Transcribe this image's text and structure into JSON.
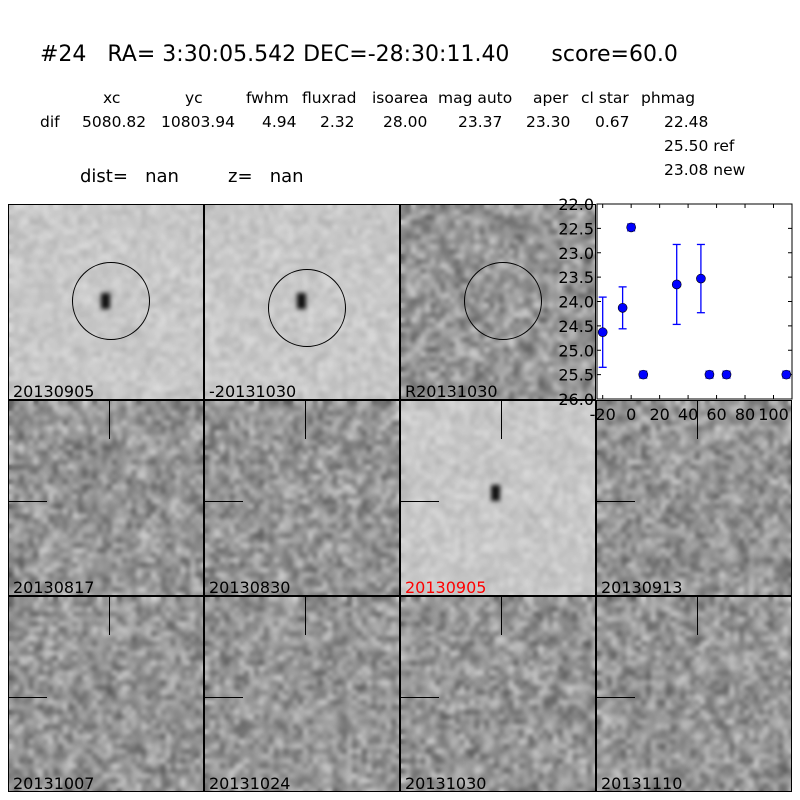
{
  "title": "#24   RA= 3:30:05.542 DEC=-28:30:11.40      score=60.0",
  "table": {
    "headers": [
      "xc",
      "yc",
      "fwhm",
      "fluxrad",
      "isoarea",
      "mag auto",
      "aper",
      "cl star",
      "phmag"
    ],
    "row_label": "dif",
    "values": [
      "5080.82",
      "10803.94",
      "4.94",
      "2.32",
      "28.00",
      "23.37",
      "23.30",
      "0.67",
      "22.48"
    ],
    "ref": "25.50 ref",
    "new": "23.08 new"
  },
  "dist_label": "dist=   nan",
  "z_label": "z=   nan",
  "highlight_color": "#ff0000",
  "panels": [
    {
      "label": "20130905",
      "type": "ref-stamp"
    },
    {
      "label": "-20131030",
      "type": "ref-stamp"
    },
    {
      "label": "R20131030",
      "type": "noise"
    },
    {
      "label": "20130817",
      "type": "noise"
    },
    {
      "label": "20130830",
      "type": "noise"
    },
    {
      "label": "20130905",
      "type": "detection",
      "highlight": true
    },
    {
      "label": "20130913",
      "type": "noise"
    },
    {
      "label": "20131007",
      "type": "noise"
    },
    {
      "label": "20131024",
      "type": "noise"
    },
    {
      "label": "20131030",
      "type": "noise"
    },
    {
      "label": "20131110",
      "type": "noise"
    }
  ],
  "chart_data": {
    "type": "scatter",
    "xlim": [
      -24,
      113
    ],
    "ylim": [
      26.0,
      22.0
    ],
    "y_inverted": true,
    "xticks": [
      -20,
      0,
      20,
      40,
      60,
      80,
      100
    ],
    "yticks": [
      "22.0",
      "22.5",
      "23.0",
      "23.5",
      "24.0",
      "24.5",
      "25.0",
      "25.5",
      "26.0"
    ],
    "color": "#0000ff",
    "points": [
      {
        "x": -20,
        "y": 24.63,
        "err": 0.72
      },
      {
        "x": -6,
        "y": 24.13,
        "err": 0.43
      },
      {
        "x": 0,
        "y": 22.48,
        "err": 0.07
      },
      {
        "x": 8.5,
        "y": 25.5,
        "err": 0.07
      },
      {
        "x": 32,
        "y": 23.65,
        "err": 0.82
      },
      {
        "x": 49,
        "y": 23.53,
        "err": 0.7
      },
      {
        "x": 55,
        "y": 25.5,
        "err": 0.07
      },
      {
        "x": 67,
        "y": 25.5,
        "err": 0.07
      },
      {
        "x": 109,
        "y": 25.5,
        "err": 0.07
      }
    ]
  }
}
